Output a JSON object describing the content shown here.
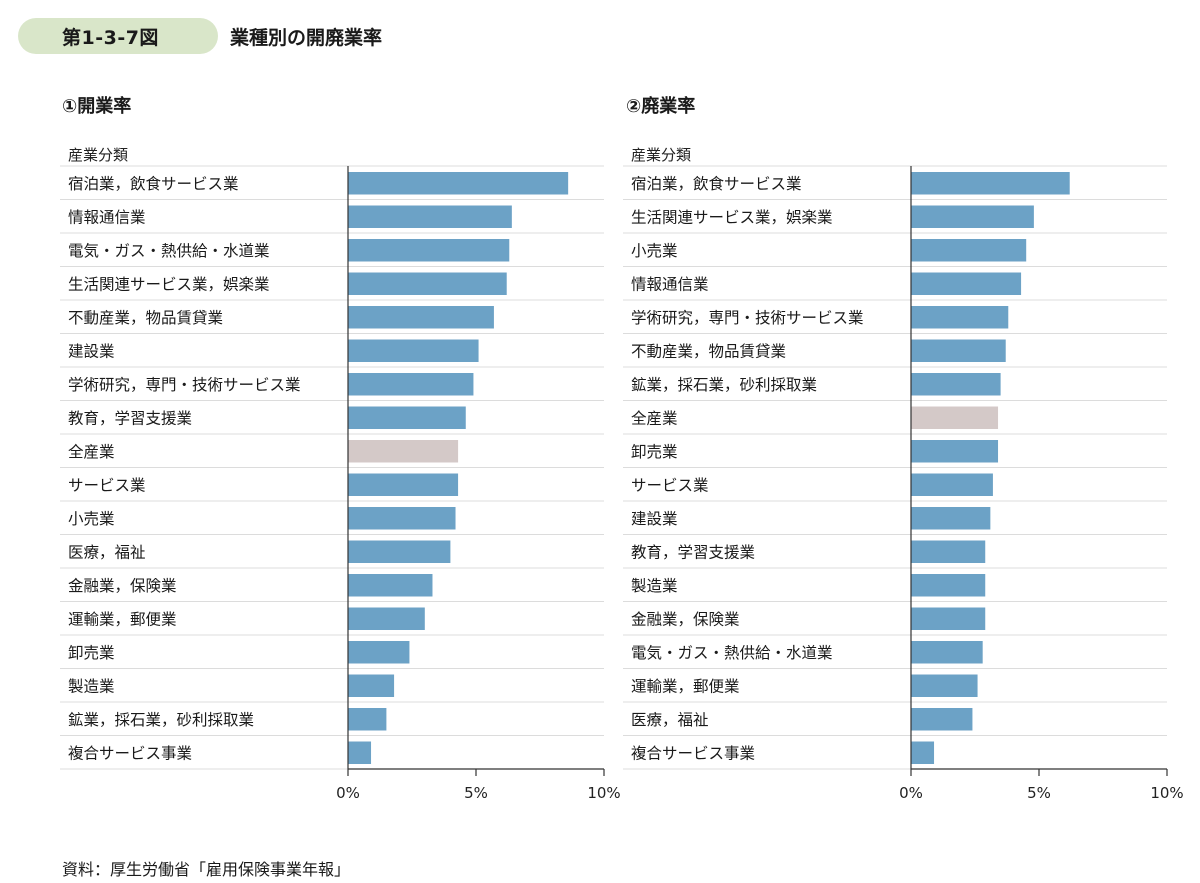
{
  "figure": {
    "number": "第1-3-7図",
    "title": "業種別の開廃業率"
  },
  "source": "資料：厚生労働省「雇用保険事業年報」",
  "colors": {
    "bar": "#6ca2c6",
    "highlight": "#d4c9c8",
    "badge": "#d9e6c9",
    "grid": "#dcdcdc",
    "axis": "#333333"
  },
  "chart_data": [
    {
      "type": "bar",
      "orientation": "horizontal",
      "title": "①開業率",
      "category_header": "産業分類",
      "highlight_category": "全産業",
      "xlim": [
        0,
        10
      ],
      "xticks": [
        0,
        5,
        10
      ],
      "xtick_labels": [
        "0%",
        "5%",
        "10%"
      ],
      "categories": [
        "宿泊業，飲食サービス業",
        "情報通信業",
        "電気・ガス・熱供給・水道業",
        "生活関連サービス業，娯楽業",
        "不動産業，物品賃貸業",
        "建設業",
        "学術研究，専門・技術サービス業",
        "教育，学習支援業",
        "全産業",
        "サービス業",
        "小売業",
        "医療，福祉",
        "金融業，保険業",
        "運輸業，郵便業",
        "卸売業",
        "製造業",
        "鉱業，採石業，砂利採取業",
        "複合サービス事業"
      ],
      "values": [
        8.6,
        6.4,
        6.3,
        6.2,
        5.7,
        5.1,
        4.9,
        4.6,
        4.3,
        4.3,
        4.2,
        4.0,
        3.3,
        3.0,
        2.4,
        1.8,
        1.5,
        0.9
      ]
    },
    {
      "type": "bar",
      "orientation": "horizontal",
      "title": "②廃業率",
      "category_header": "産業分類",
      "highlight_category": "全産業",
      "xlim": [
        0,
        10
      ],
      "xticks": [
        0,
        5,
        10
      ],
      "xtick_labels": [
        "0%",
        "5%",
        "10%"
      ],
      "categories": [
        "宿泊業，飲食サービス業",
        "生活関連サービス業，娯楽業",
        "小売業",
        "情報通信業",
        "学術研究，専門・技術サービス業",
        "不動産業，物品賃貸業",
        "鉱業，採石業，砂利採取業",
        "全産業",
        "卸売業",
        "サービス業",
        "建設業",
        "教育，学習支援業",
        "製造業",
        "金融業，保険業",
        "電気・ガス・熱供給・水道業",
        "運輸業，郵便業",
        "医療，福祉",
        "複合サービス事業"
      ],
      "values": [
        6.2,
        4.8,
        4.5,
        4.3,
        3.8,
        3.7,
        3.5,
        3.4,
        3.4,
        3.2,
        3.1,
        2.9,
        2.9,
        2.9,
        2.8,
        2.6,
        2.4,
        0.9
      ]
    }
  ]
}
